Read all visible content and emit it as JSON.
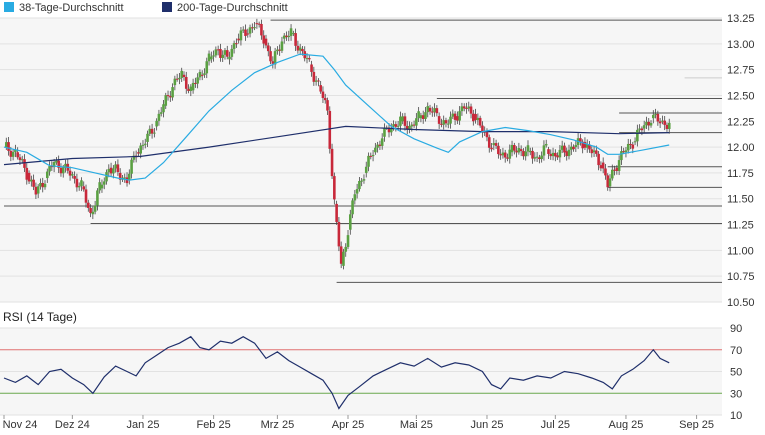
{
  "chart_data": [
    {
      "type": "candlestick",
      "name": "price-chart",
      "legend": [
        {
          "label": "38-Tage-Durchschnitt",
          "color": "#29abe2"
        },
        {
          "label": "200-Tage-Durchschnitt",
          "color": "#1f2f6b"
        }
      ],
      "ylim": [
        10.5,
        13.25
      ],
      "y_ticks": [
        "13.25",
        "13.00",
        "12.75",
        "12.50",
        "12.25",
        "12.00",
        "11.75",
        "11.50",
        "11.25",
        "11.00",
        "10.75",
        "10.50"
      ],
      "x_ticks": [
        "Nov 24",
        "Dez 24",
        "Jan 25",
        "Feb 25",
        "Mrz 25",
        "Apr 25",
        "Mai 25",
        "Jun 25",
        "Jul 25",
        "Aug 25",
        "Sep 25"
      ],
      "x_tick_days": [
        0,
        30,
        61,
        92,
        120,
        151,
        181,
        212,
        242,
        273,
        304
      ],
      "closes": [
        {
          "day": 0,
          "value": 12.0
        },
        {
          "day": 5,
          "value": 11.95
        },
        {
          "day": 10,
          "value": 11.75
        },
        {
          "day": 14,
          "value": 11.55
        },
        {
          "day": 18,
          "value": 11.7
        },
        {
          "day": 22,
          "value": 11.85
        },
        {
          "day": 26,
          "value": 11.8
        },
        {
          "day": 30,
          "value": 11.72
        },
        {
          "day": 34,
          "value": 11.62
        },
        {
          "day": 38,
          "value": 11.35
        },
        {
          "day": 42,
          "value": 11.6
        },
        {
          "day": 46,
          "value": 11.8
        },
        {
          "day": 50,
          "value": 11.75
        },
        {
          "day": 54,
          "value": 11.68
        },
        {
          "day": 58,
          "value": 11.95
        },
        {
          "day": 62,
          "value": 12.05
        },
        {
          "day": 66,
          "value": 12.2
        },
        {
          "day": 70,
          "value": 12.4
        },
        {
          "day": 74,
          "value": 12.6
        },
        {
          "day": 78,
          "value": 12.7
        },
        {
          "day": 82,
          "value": 12.55
        },
        {
          "day": 86,
          "value": 12.7
        },
        {
          "day": 90,
          "value": 12.85
        },
        {
          "day": 94,
          "value": 12.95
        },
        {
          "day": 98,
          "value": 12.85
        },
        {
          "day": 102,
          "value": 13.05
        },
        {
          "day": 106,
          "value": 13.1
        },
        {
          "day": 110,
          "value": 13.2
        },
        {
          "day": 114,
          "value": 13.05
        },
        {
          "day": 118,
          "value": 12.8
        },
        {
          "day": 122,
          "value": 13.05
        },
        {
          "day": 126,
          "value": 13.1
        },
        {
          "day": 130,
          "value": 12.95
        },
        {
          "day": 134,
          "value": 12.8
        },
        {
          "day": 138,
          "value": 12.6
        },
        {
          "day": 142,
          "value": 12.35
        },
        {
          "day": 145,
          "value": 11.45
        },
        {
          "day": 148,
          "value": 10.85
        },
        {
          "day": 151,
          "value": 11.2
        },
        {
          "day": 154,
          "value": 11.55
        },
        {
          "day": 158,
          "value": 11.75
        },
        {
          "day": 162,
          "value": 11.95
        },
        {
          "day": 166,
          "value": 12.1
        },
        {
          "day": 170,
          "value": 12.2
        },
        {
          "day": 174,
          "value": 12.25
        },
        {
          "day": 178,
          "value": 12.2
        },
        {
          "day": 182,
          "value": 12.28
        },
        {
          "day": 186,
          "value": 12.38
        },
        {
          "day": 190,
          "value": 12.3
        },
        {
          "day": 194,
          "value": 12.22
        },
        {
          "day": 198,
          "value": 12.3
        },
        {
          "day": 202,
          "value": 12.38
        },
        {
          "day": 206,
          "value": 12.32
        },
        {
          "day": 210,
          "value": 12.15
        },
        {
          "day": 214,
          "value": 12.02
        },
        {
          "day": 218,
          "value": 11.92
        },
        {
          "day": 222,
          "value": 11.95
        },
        {
          "day": 226,
          "value": 11.98
        },
        {
          "day": 230,
          "value": 11.95
        },
        {
          "day": 234,
          "value": 11.9
        },
        {
          "day": 238,
          "value": 11.98
        },
        {
          "day": 242,
          "value": 11.92
        },
        {
          "day": 246,
          "value": 11.96
        },
        {
          "day": 250,
          "value": 12.0
        },
        {
          "day": 254,
          "value": 12.05
        },
        {
          "day": 258,
          "value": 11.95
        },
        {
          "day": 262,
          "value": 11.85
        },
        {
          "day": 265,
          "value": 11.62
        },
        {
          "day": 268,
          "value": 11.8
        },
        {
          "day": 272,
          "value": 11.95
        },
        {
          "day": 276,
          "value": 12.05
        },
        {
          "day": 280,
          "value": 12.18
        },
        {
          "day": 284,
          "value": 12.28
        },
        {
          "day": 288,
          "value": 12.25
        },
        {
          "day": 292,
          "value": 12.22
        }
      ],
      "ma38": [
        {
          "day": 0,
          "value": 12.0
        },
        {
          "day": 10,
          "value": 11.95
        },
        {
          "day": 20,
          "value": 11.82
        },
        {
          "day": 30,
          "value": 11.8
        },
        {
          "day": 40,
          "value": 11.75
        },
        {
          "day": 50,
          "value": 11.7
        },
        {
          "day": 55,
          "value": 11.68
        },
        {
          "day": 62,
          "value": 11.7
        },
        {
          "day": 70,
          "value": 11.85
        },
        {
          "day": 80,
          "value": 12.1
        },
        {
          "day": 90,
          "value": 12.35
        },
        {
          "day": 100,
          "value": 12.55
        },
        {
          "day": 110,
          "value": 12.72
        },
        {
          "day": 120,
          "value": 12.82
        },
        {
          "day": 130,
          "value": 12.9
        },
        {
          "day": 140,
          "value": 12.88
        },
        {
          "day": 145,
          "value": 12.75
        },
        {
          "day": 150,
          "value": 12.6
        },
        {
          "day": 160,
          "value": 12.4
        },
        {
          "day": 170,
          "value": 12.2
        },
        {
          "day": 180,
          "value": 12.08
        },
        {
          "day": 190,
          "value": 11.99
        },
        {
          "day": 195,
          "value": 11.95
        },
        {
          "day": 200,
          "value": 12.05
        },
        {
          "day": 210,
          "value": 12.15
        },
        {
          "day": 220,
          "value": 12.19
        },
        {
          "day": 230,
          "value": 12.16
        },
        {
          "day": 240,
          "value": 12.12
        },
        {
          "day": 250,
          "value": 12.07
        },
        {
          "day": 260,
          "value": 12.0
        },
        {
          "day": 265,
          "value": 11.93
        },
        {
          "day": 270,
          "value": 11.93
        },
        {
          "day": 280,
          "value": 11.97
        },
        {
          "day": 292,
          "value": 12.02
        }
      ],
      "ma200": [
        {
          "day": 0,
          "value": 11.83
        },
        {
          "day": 30,
          "value": 11.89
        },
        {
          "day": 60,
          "value": 11.91
        },
        {
          "day": 90,
          "value": 12.0
        },
        {
          "day": 120,
          "value": 12.1
        },
        {
          "day": 150,
          "value": 12.2
        },
        {
          "day": 180,
          "value": 12.17
        },
        {
          "day": 210,
          "value": 12.15
        },
        {
          "day": 240,
          "value": 12.15
        },
        {
          "day": 270,
          "value": 12.13
        },
        {
          "day": 292,
          "value": 12.14
        }
      ],
      "level_lines": [
        {
          "value": 13.23,
          "from_day": 117,
          "to_day": 304
        },
        {
          "value": 12.67,
          "from_day": 304,
          "to_day": 304
        },
        {
          "value": 12.47,
          "from_day": 190,
          "to_day": 304
        },
        {
          "value": 12.33,
          "from_day": 270,
          "to_day": 304
        },
        {
          "value": 12.14,
          "from_day": 270,
          "to_day": 304
        },
        {
          "value": 11.81,
          "from_day": 265,
          "to_day": 304
        },
        {
          "value": 11.61,
          "from_day": 265,
          "to_day": 304
        },
        {
          "value": 11.43,
          "from_day": 0,
          "to_day": 304
        },
        {
          "value": 11.26,
          "from_day": 38,
          "to_day": 304
        },
        {
          "value": 10.69,
          "from_day": 146,
          "to_day": 304
        }
      ]
    },
    {
      "type": "line",
      "name": "rsi-chart",
      "title": "RSI (14 Tage)",
      "ylim": [
        10,
        90
      ],
      "y_ticks": [
        "90",
        "70",
        "50",
        "30",
        "10"
      ],
      "overbought": 70,
      "oversold": 30,
      "series": [
        {
          "color": "#1f2f6b",
          "points": [
            {
              "day": 0,
              "value": 44
            },
            {
              "day": 5,
              "value": 40
            },
            {
              "day": 10,
              "value": 46
            },
            {
              "day": 15,
              "value": 38
            },
            {
              "day": 20,
              "value": 50
            },
            {
              "day": 25,
              "value": 52
            },
            {
              "day": 30,
              "value": 44
            },
            {
              "day": 35,
              "value": 38
            },
            {
              "day": 39,
              "value": 30
            },
            {
              "day": 44,
              "value": 45
            },
            {
              "day": 49,
              "value": 55
            },
            {
              "day": 54,
              "value": 50
            },
            {
              "day": 58,
              "value": 46
            },
            {
              "day": 62,
              "value": 58
            },
            {
              "day": 67,
              "value": 65
            },
            {
              "day": 72,
              "value": 72
            },
            {
              "day": 77,
              "value": 76
            },
            {
              "day": 82,
              "value": 82
            },
            {
              "day": 86,
              "value": 72
            },
            {
              "day": 90,
              "value": 70
            },
            {
              "day": 95,
              "value": 78
            },
            {
              "day": 100,
              "value": 76
            },
            {
              "day": 105,
              "value": 82
            },
            {
              "day": 110,
              "value": 76
            },
            {
              "day": 115,
              "value": 62
            },
            {
              "day": 120,
              "value": 68
            },
            {
              "day": 125,
              "value": 60
            },
            {
              "day": 130,
              "value": 54
            },
            {
              "day": 135,
              "value": 48
            },
            {
              "day": 140,
              "value": 42
            },
            {
              "day": 144,
              "value": 30
            },
            {
              "day": 147,
              "value": 16
            },
            {
              "day": 151,
              "value": 28
            },
            {
              "day": 156,
              "value": 36
            },
            {
              "day": 162,
              "value": 46
            },
            {
              "day": 168,
              "value": 52
            },
            {
              "day": 174,
              "value": 58
            },
            {
              "day": 180,
              "value": 55
            },
            {
              "day": 186,
              "value": 62
            },
            {
              "day": 192,
              "value": 54
            },
            {
              "day": 198,
              "value": 58
            },
            {
              "day": 204,
              "value": 56
            },
            {
              "day": 210,
              "value": 50
            },
            {
              "day": 214,
              "value": 38
            },
            {
              "day": 218,
              "value": 34
            },
            {
              "day": 222,
              "value": 44
            },
            {
              "day": 228,
              "value": 42
            },
            {
              "day": 234,
              "value": 46
            },
            {
              "day": 240,
              "value": 44
            },
            {
              "day": 246,
              "value": 50
            },
            {
              "day": 252,
              "value": 48
            },
            {
              "day": 258,
              "value": 44
            },
            {
              "day": 263,
              "value": 40
            },
            {
              "day": 267,
              "value": 34
            },
            {
              "day": 271,
              "value": 46
            },
            {
              "day": 276,
              "value": 52
            },
            {
              "day": 281,
              "value": 60
            },
            {
              "day": 285,
              "value": 70
            },
            {
              "day": 288,
              "value": 62
            },
            {
              "day": 292,
              "value": 58
            }
          ]
        }
      ]
    }
  ]
}
